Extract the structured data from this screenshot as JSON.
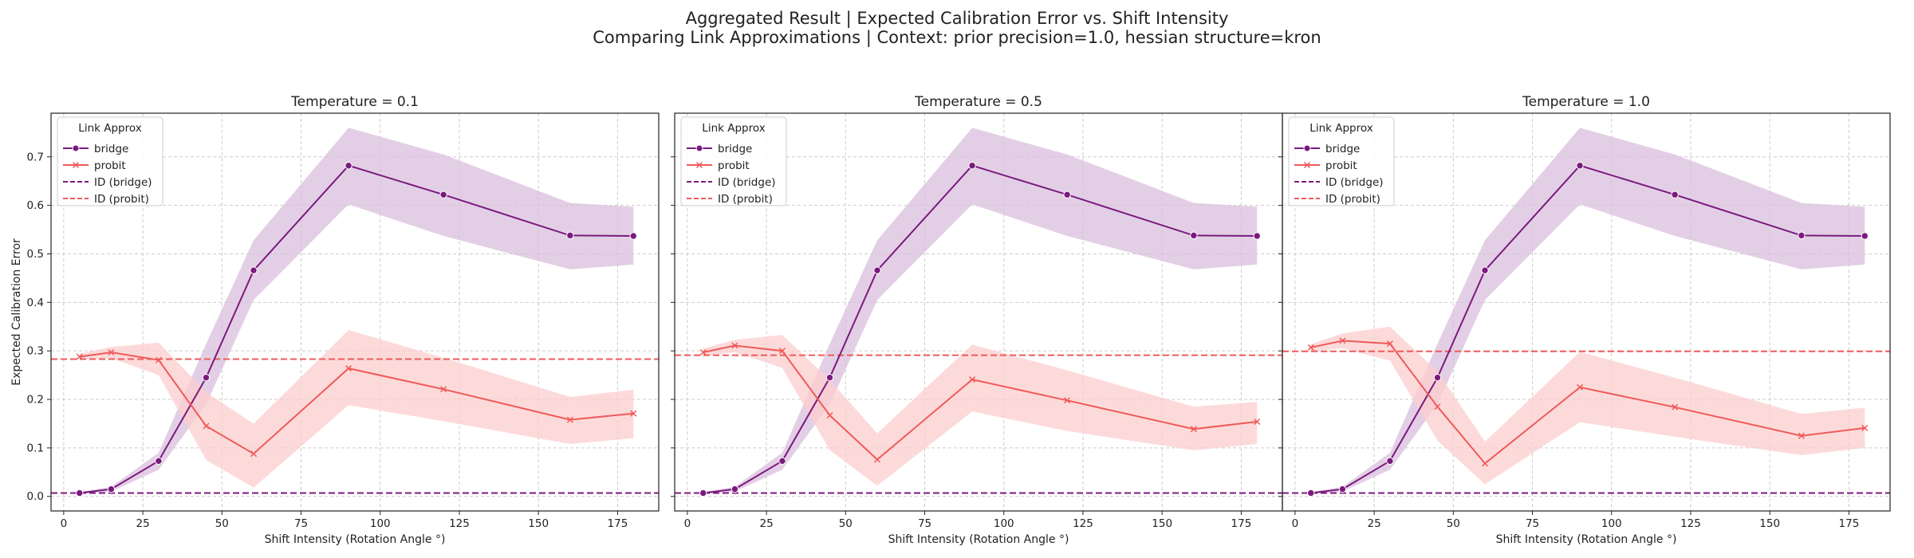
{
  "figure": {
    "title_line1": "Aggregated Result | Expected Calibration Error vs. Shift Intensity",
    "title_line2": "Comparing Link Approximations | Context: prior precision=1.0, hessian structure=kron"
  },
  "colors": {
    "bridge": "#7b1a7e",
    "probit": "#ef5a5a",
    "bridge_band": "#d9bfdc",
    "probit_band": "#fccdcd",
    "grid": "#cccccc"
  },
  "legend": {
    "title": "Link Approx",
    "entries": [
      "bridge",
      "probit",
      "ID (bridge)",
      "ID (probit)"
    ],
    "placement": "upper-left"
  },
  "chart_data": [
    {
      "type": "line",
      "title": "Temperature = 0.1",
      "xlabel": "Shift Intensity (Rotation Angle °)",
      "ylabel": "Expected Calibration Error",
      "xlim": [
        -4,
        188
      ],
      "ylim": [
        -0.03,
        0.79
      ],
      "xticks": [
        0,
        25,
        50,
        75,
        100,
        125,
        150,
        175
      ],
      "yticks": [
        0.0,
        0.1,
        0.2,
        0.3,
        0.4,
        0.5,
        0.6,
        0.7
      ],
      "grid": true,
      "x": [
        5,
        15,
        30,
        45,
        60,
        90,
        120,
        160,
        180
      ],
      "series": [
        {
          "name": "bridge",
          "marker": "circle",
          "values": [
            0.007,
            0.015,
            0.073,
            0.245,
            0.466,
            0.682,
            0.622,
            0.538,
            0.537
          ],
          "lower": [
            0.005,
            0.01,
            0.055,
            0.19,
            0.405,
            0.602,
            0.537,
            0.468,
            0.478
          ],
          "upper": [
            0.009,
            0.02,
            0.09,
            0.315,
            0.528,
            0.76,
            0.705,
            0.605,
            0.597
          ]
        },
        {
          "name": "probit",
          "marker": "x",
          "values": [
            0.288,
            0.297,
            0.281,
            0.145,
            0.088,
            0.264,
            0.221,
            0.158,
            0.171
          ],
          "lower": [
            0.282,
            0.285,
            0.25,
            0.075,
            0.018,
            0.188,
            0.155,
            0.108,
            0.12
          ],
          "upper": [
            0.294,
            0.308,
            0.317,
            0.215,
            0.15,
            0.343,
            0.286,
            0.205,
            0.22
          ]
        }
      ],
      "reference_lines": [
        {
          "name": "ID (bridge)",
          "y": 0.007
        },
        {
          "name": "ID (probit)",
          "y": 0.283
        }
      ]
    },
    {
      "type": "line",
      "title": "Temperature = 0.5",
      "xlabel": "Shift Intensity (Rotation Angle °)",
      "ylabel": "",
      "xlim": [
        -4,
        188
      ],
      "ylim": [
        -0.03,
        0.79
      ],
      "xticks": [
        0,
        25,
        50,
        75,
        100,
        125,
        150,
        175
      ],
      "yticks": [
        0.0,
        0.1,
        0.2,
        0.3,
        0.4,
        0.5,
        0.6,
        0.7
      ],
      "grid": true,
      "x": [
        5,
        15,
        30,
        45,
        60,
        90,
        120,
        160,
        180
      ],
      "series": [
        {
          "name": "bridge",
          "marker": "circle",
          "values": [
            0.007,
            0.015,
            0.073,
            0.245,
            0.466,
            0.682,
            0.622,
            0.538,
            0.537
          ],
          "lower": [
            0.005,
            0.01,
            0.055,
            0.19,
            0.405,
            0.602,
            0.537,
            0.468,
            0.478
          ],
          "upper": [
            0.009,
            0.02,
            0.09,
            0.315,
            0.528,
            0.76,
            0.705,
            0.605,
            0.597
          ]
        },
        {
          "name": "probit",
          "marker": "x",
          "values": [
            0.297,
            0.311,
            0.3,
            0.167,
            0.076,
            0.241,
            0.198,
            0.139,
            0.154
          ],
          "lower": [
            0.29,
            0.297,
            0.265,
            0.095,
            0.022,
            0.175,
            0.135,
            0.095,
            0.108
          ],
          "upper": [
            0.305,
            0.323,
            0.333,
            0.24,
            0.13,
            0.313,
            0.26,
            0.185,
            0.195
          ]
        }
      ],
      "reference_lines": [
        {
          "name": "ID (bridge)",
          "y": 0.007
        },
        {
          "name": "ID (probit)",
          "y": 0.291
        }
      ]
    },
    {
      "type": "line",
      "title": "Temperature = 1.0",
      "xlabel": "Shift Intensity (Rotation Angle °)",
      "ylabel": "",
      "xlim": [
        -4,
        188
      ],
      "ylim": [
        -0.03,
        0.79
      ],
      "xticks": [
        0,
        25,
        50,
        75,
        100,
        125,
        150,
        175
      ],
      "yticks": [
        0.0,
        0.1,
        0.2,
        0.3,
        0.4,
        0.5,
        0.6,
        0.7
      ],
      "grid": true,
      "x": [
        5,
        15,
        30,
        45,
        60,
        90,
        120,
        160,
        180
      ],
      "series": [
        {
          "name": "bridge",
          "marker": "circle",
          "values": [
            0.007,
            0.015,
            0.073,
            0.245,
            0.466,
            0.682,
            0.622,
            0.538,
            0.537
          ],
          "lower": [
            0.005,
            0.01,
            0.055,
            0.19,
            0.405,
            0.602,
            0.537,
            0.468,
            0.478
          ],
          "upper": [
            0.009,
            0.02,
            0.09,
            0.315,
            0.528,
            0.76,
            0.705,
            0.605,
            0.597
          ]
        },
        {
          "name": "probit",
          "marker": "x",
          "values": [
            0.307,
            0.321,
            0.315,
            0.185,
            0.068,
            0.225,
            0.184,
            0.125,
            0.141
          ],
          "lower": [
            0.3,
            0.305,
            0.28,
            0.115,
            0.025,
            0.153,
            0.123,
            0.085,
            0.1
          ],
          "upper": [
            0.314,
            0.336,
            0.35,
            0.258,
            0.113,
            0.298,
            0.245,
            0.17,
            0.183
          ]
        }
      ],
      "reference_lines": [
        {
          "name": "ID (bridge)",
          "y": 0.007
        },
        {
          "name": "ID (probit)",
          "y": 0.299
        }
      ]
    }
  ]
}
